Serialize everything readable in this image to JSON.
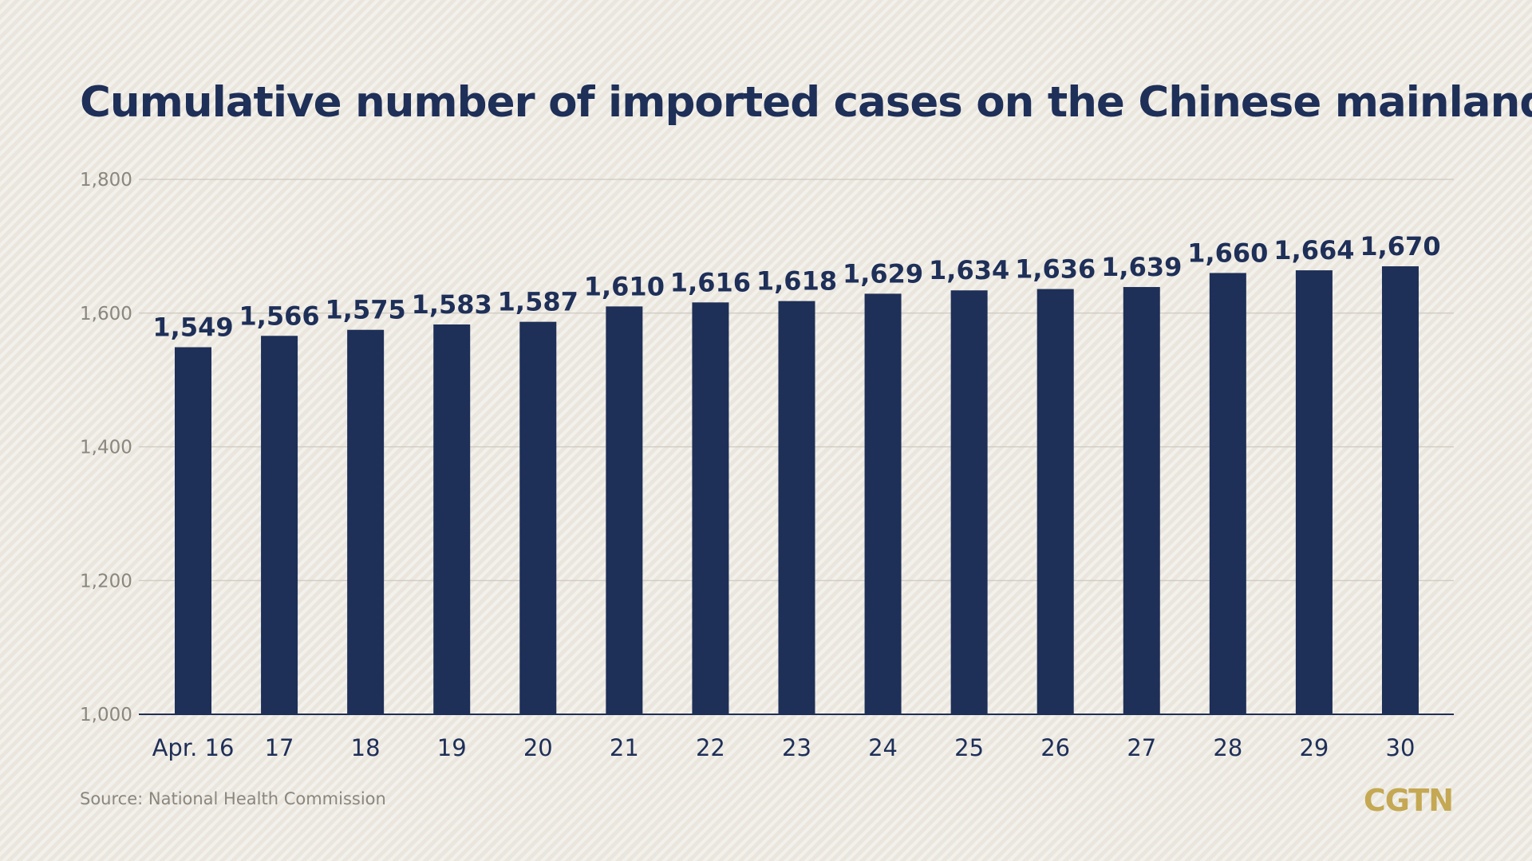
{
  "chart_data": {
    "type": "bar",
    "title": "Cumulative number of imported cases on the Chinese mainland",
    "categories": [
      "Apr. 16",
      "17",
      "18",
      "19",
      "20",
      "21",
      "22",
      "23",
      "24",
      "25",
      "26",
      "27",
      "28",
      "29",
      "30"
    ],
    "values": [
      1549,
      1566,
      1575,
      1583,
      1587,
      1610,
      1616,
      1618,
      1629,
      1634,
      1636,
      1639,
      1660,
      1664,
      1670
    ],
    "data_labels": [
      "1,549",
      "1,566",
      "1,575",
      "1,583",
      "1,587",
      "1,610",
      "1,616",
      "1,618",
      "1,629",
      "1,634",
      "1,636",
      "1,639",
      "1,660",
      "1,664",
      "1,670"
    ],
    "ylim": [
      1000,
      1800
    ],
    "y_ticks": [
      1000,
      1200,
      1400,
      1600,
      1800
    ],
    "y_tick_labels": [
      "1,000",
      "1,200",
      "1,400",
      "1,600",
      "1,800"
    ],
    "xlabel": "",
    "ylabel": "",
    "grid": true,
    "legend": "none",
    "bar_color": "#1e2f58",
    "gridline_color": "#cdc9c0"
  },
  "source": "Source: National Health Commission",
  "brand": {
    "logo_text": "CGTN",
    "logo_color": "#c4a853"
  }
}
